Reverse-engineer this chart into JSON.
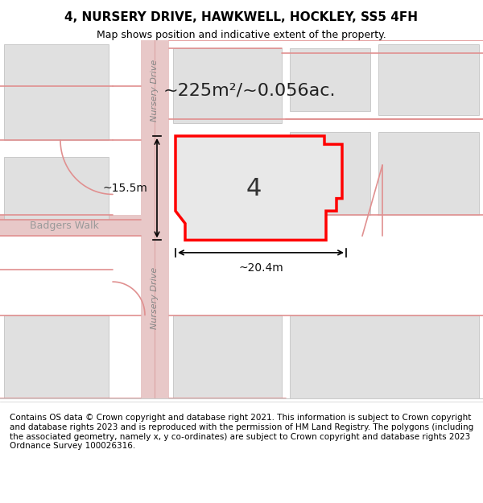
{
  "title": "4, NURSERY DRIVE, HAWKWELL, HOCKLEY, SS5 4FH",
  "subtitle": "Map shows position and indicative extent of the property.",
  "footer": "Contains OS data © Crown copyright and database right 2021. This information is subject to Crown copyright and database rights 2023 and is reproduced with the permission of HM Land Registry. The polygons (including the associated geometry, namely x, y co-ordinates) are subject to Crown copyright and database rights 2023 Ordnance Survey 100026316.",
  "map_bg": "#f5f5f5",
  "road_color": "#e8c8c8",
  "road_line_color": "#d08080",
  "building_fill": "#e0e0e0",
  "building_edge": "#bbbbbb",
  "plot_fill": "#e8e8e8",
  "plot_edge": "#ff0000",
  "plot_edge_width": 2.5,
  "area_text": "~225m²/~0.056ac.",
  "number_text": "4",
  "dim_h": "~15.5m",
  "dim_w": "~20.4m",
  "street_label_upper": "Nursery Drive",
  "street_label_lower": "Nursery Drive",
  "street_label_left": "Badgers Walk",
  "title_fontsize": 11,
  "subtitle_fontsize": 9,
  "footer_fontsize": 7.5
}
